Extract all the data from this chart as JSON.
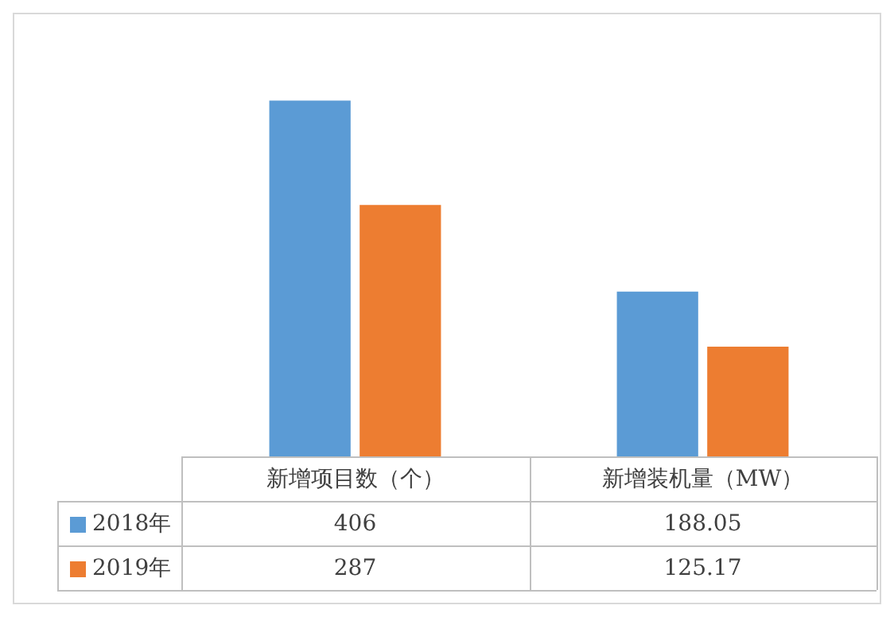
{
  "chart_data": {
    "type": "bar",
    "categories": [
      "新增项目数（个）",
      "新增装机量（MW）"
    ],
    "series": [
      {
        "name": "2018年",
        "color": "#5b9bd5",
        "values": [
          406,
          188.05
        ]
      },
      {
        "name": "2019年",
        "color": "#ed7d31",
        "values": [
          287,
          125.17
        ]
      }
    ],
    "data_labels": true,
    "legend": "bottom"
  }
}
